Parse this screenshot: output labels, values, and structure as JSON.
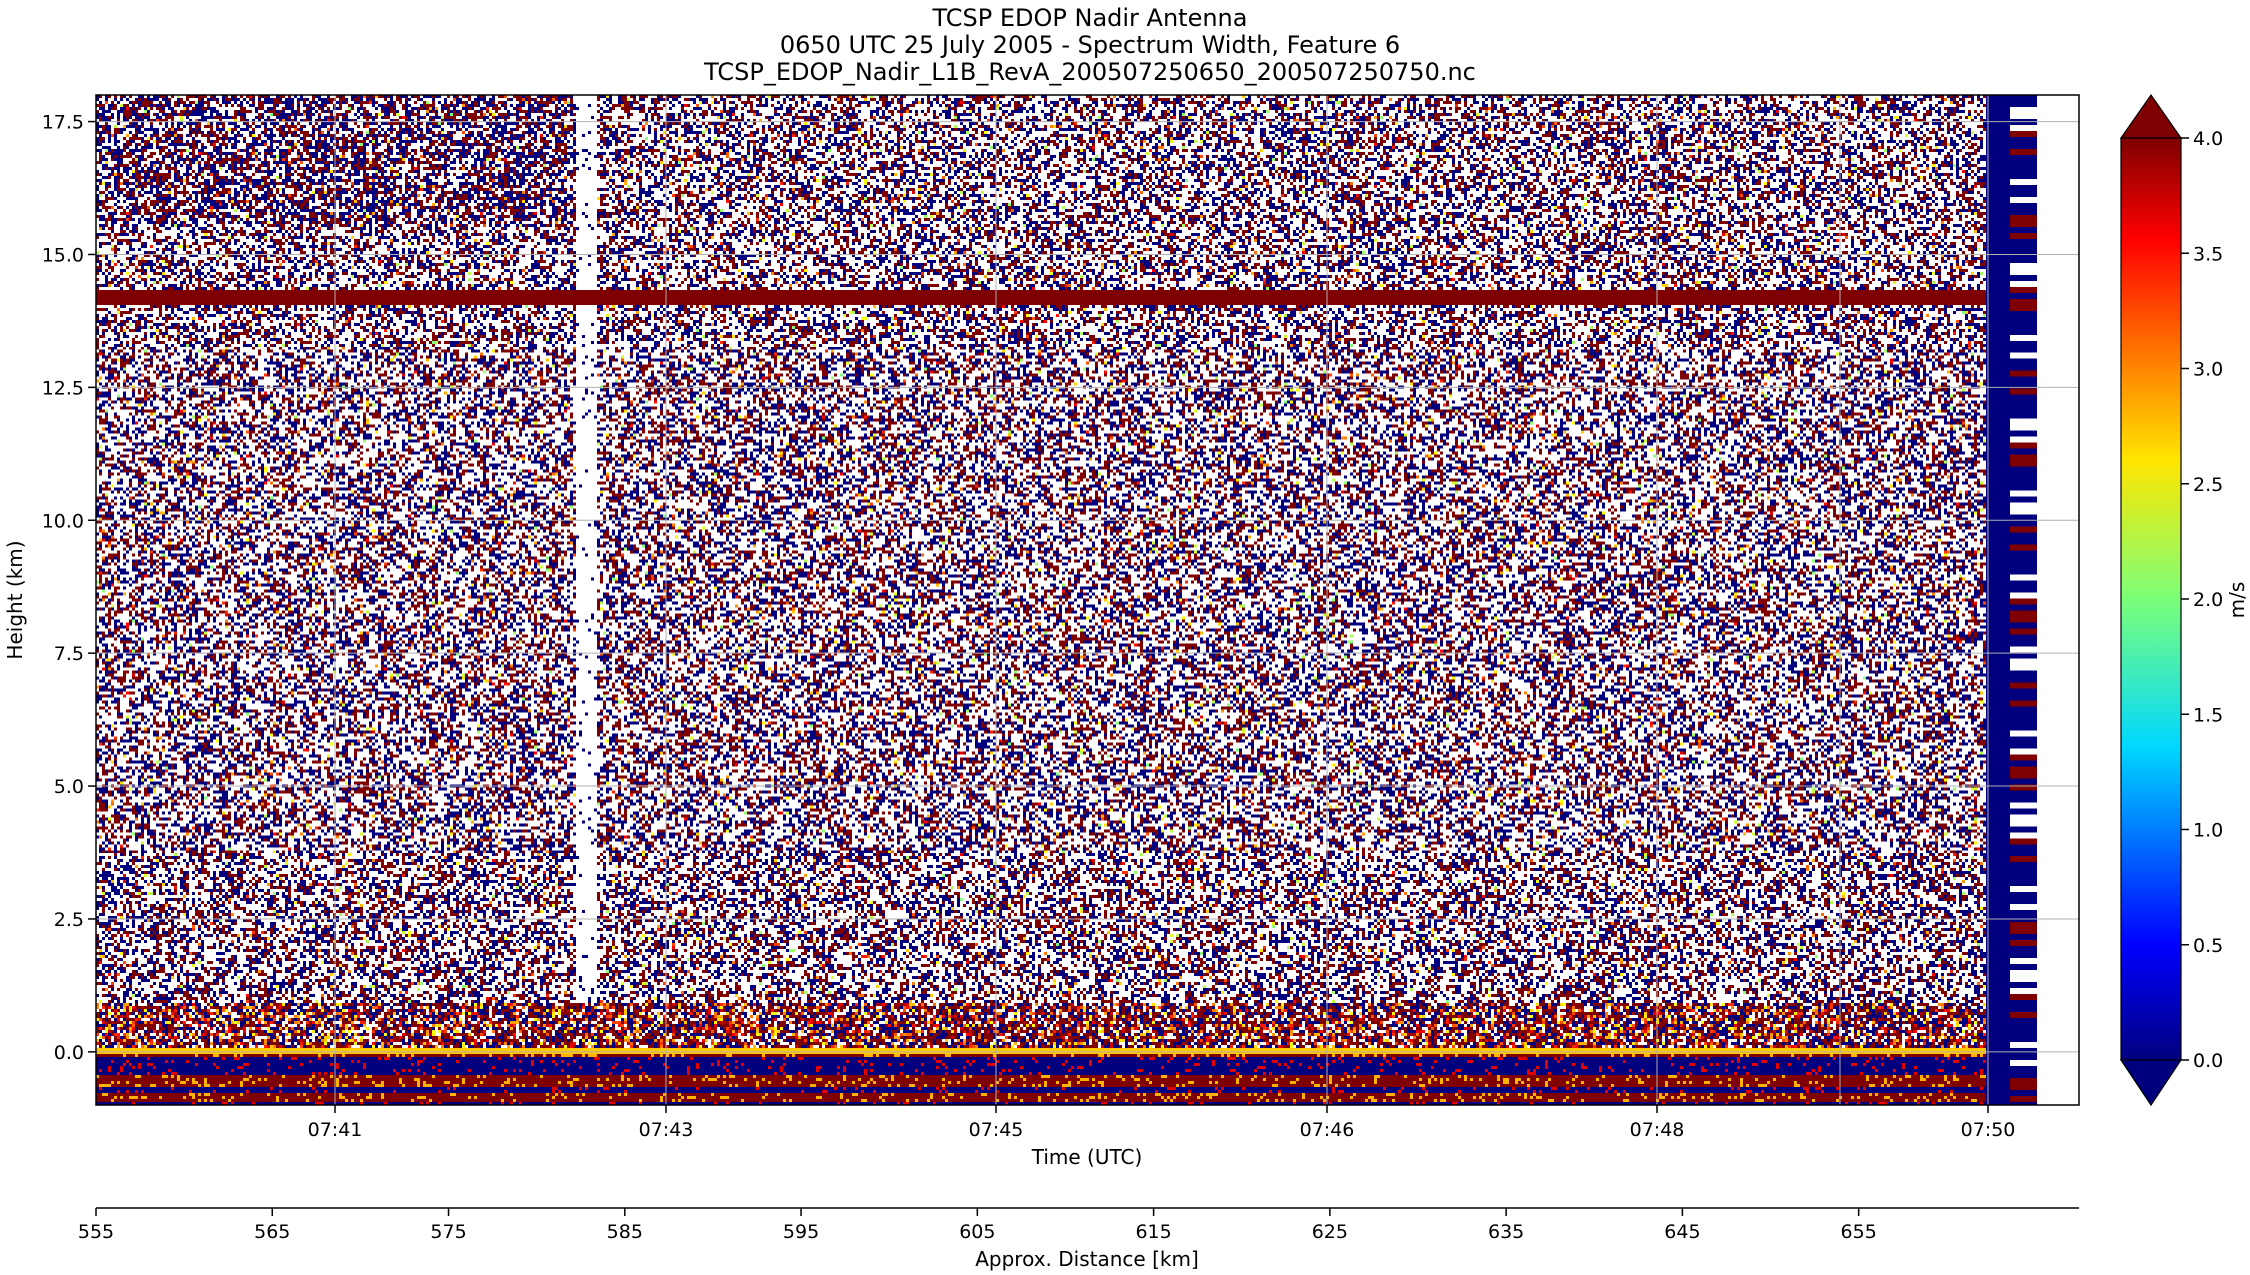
{
  "chart_data": {
    "type": "heatmap",
    "title": [
      "TCSP EDOP Nadir Antenna",
      "0650 UTC 25 July 2005 - Spectrum Width, Feature 6",
      "TCSP_EDOP_Nadir_L1B_RevA_200507250650_200507250750.nc"
    ],
    "xlabel": "Time (UTC)",
    "ylabel": "Height (km)",
    "ylim": [
      -1.0,
      18.0
    ],
    "yticks": [
      0.0,
      2.5,
      5.0,
      7.5,
      10.0,
      12.5,
      15.0,
      17.5
    ],
    "yticklabels": [
      "0.0",
      "2.5",
      "5.0",
      "7.5",
      "10.0",
      "12.5",
      "15.0",
      "17.5"
    ],
    "xticklabels": [
      "07:41",
      "07:43",
      "07:45",
      "07:46",
      "07:48",
      "07:50"
    ],
    "xlabel2": "Approx. Distance [km]",
    "xlim2": [
      555,
      667.5
    ],
    "xticks2": [
      555,
      565,
      575,
      585,
      595,
      605,
      615,
      625,
      635,
      645,
      655
    ],
    "xticklabels2": [
      "555",
      "565",
      "575",
      "585",
      "595",
      "605",
      "615",
      "625",
      "635",
      "645",
      "655"
    ],
    "colorbar": {
      "label": "m/s",
      "vmin": 0.0,
      "vmax": 4.0,
      "ticks": [
        0.0,
        0.5,
        1.0,
        1.5,
        2.0,
        2.5,
        3.0,
        3.5,
        4.0
      ],
      "ticklabels": [
        "0.0",
        "0.5",
        "1.0",
        "1.5",
        "2.0",
        "2.5",
        "3.0",
        "3.5",
        "4.0"
      ],
      "extend": "both",
      "colormap": "jet"
    },
    "features": {
      "noise_top_band_km": [
        0.8,
        18.0
      ],
      "strong_return_line_km": 14.2,
      "surface_layer_km": [
        -1.0,
        0.8
      ],
      "data_gap_x": "near 07:42-07:43",
      "grid": true
    }
  }
}
